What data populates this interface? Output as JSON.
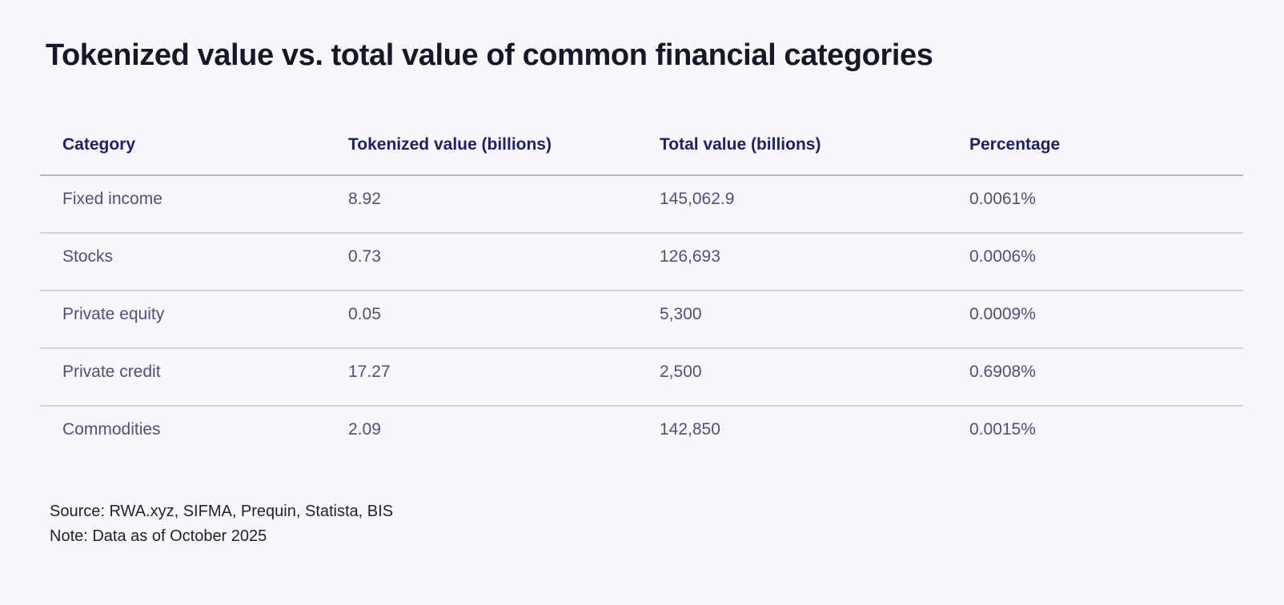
{
  "title": "Tokenized value vs. total value of common financial categories",
  "colors": {
    "background": "#f9f7fd",
    "title_text": "#141828",
    "header_text": "#1e2166",
    "body_text": "#4e5178",
    "header_divider": "#b7b5c4",
    "row_divider": "#d3d1de",
    "footer_text": "#1d2132"
  },
  "chart_data": {
    "type": "table",
    "title": "Tokenized value vs. total value of common financial categories",
    "columns": [
      "Category",
      "Tokenized value (billions)",
      "Total value (billions)",
      "Percentage"
    ],
    "rows": [
      [
        "Fixed income",
        "8.92",
        "145,062.9",
        "0.0061%"
      ],
      [
        "Stocks",
        "0.73",
        "126,693",
        "0.0006%"
      ],
      [
        "Private equity",
        "0.05",
        "5,300",
        "0.0009%"
      ],
      [
        "Private credit",
        "17.27",
        "2,500",
        "0.6908%"
      ],
      [
        "Commodities",
        "2.09",
        "142,850",
        "0.0015%"
      ]
    ]
  },
  "footer": {
    "source": "Source: RWA.xyz, SIFMA, Prequin, Statista, BIS",
    "note": "Note: Data as of October 2025"
  }
}
